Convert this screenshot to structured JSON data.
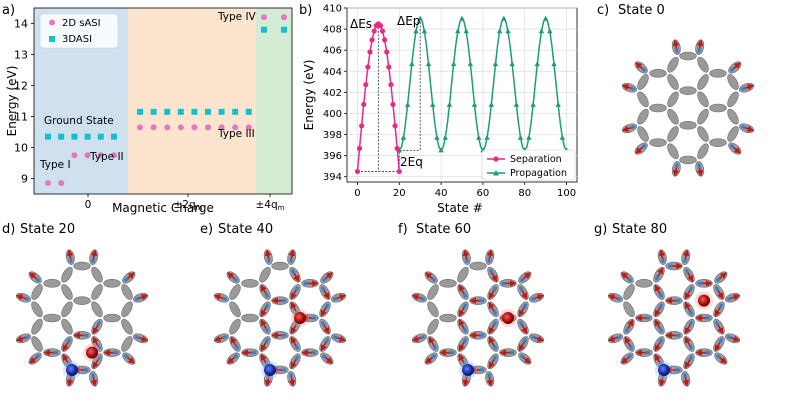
{
  "panels": {
    "a": {
      "label": "a)"
    },
    "b": {
      "label": "b)"
    },
    "c": {
      "label": "c)",
      "state": "State 0"
    },
    "d": {
      "label": "d)",
      "state": "State 20"
    },
    "e": {
      "label": "e)",
      "state": "State 40"
    },
    "f": {
      "label": "f)",
      "state": "State 60"
    },
    "g": {
      "label": "g)",
      "state": "State 80"
    }
  },
  "colors": {
    "sasi": "#e377c2",
    "dasi": "#17becf",
    "separation": "#e7298a",
    "propagation": "#1b9e77",
    "region_blue": "#cfe0ee",
    "region_orange": "#fde4cf",
    "region_green": "#d5ecd4",
    "island": "#9a9a9a",
    "arrow": "#c01818",
    "blue_end": "#3a7bd5",
    "charge_red": "#b01010",
    "charge_blue": "#1030a0"
  },
  "chart_data": [
    {
      "type": "scatter",
      "ylabel": "Energy (eV)",
      "xlabel": "Magnetic Charge",
      "ylim": [
        8.5,
        14.5
      ],
      "yticks": [
        9,
        10,
        11,
        12,
        13,
        14
      ],
      "xticks": [
        "0",
        "±2q",
        "±4q"
      ],
      "xtick_sub": "m",
      "legend": [
        "2D sASI",
        "3DASI"
      ],
      "legend_position": "top-left",
      "series": [
        {
          "name": "2D sASI",
          "points": [
            [
              0,
              8.85
            ],
            [
              1,
              8.85
            ],
            [
              2,
              9.75
            ],
            [
              3,
              9.75
            ],
            [
              4,
              9.75
            ],
            [
              5,
              9.75
            ],
            [
              6,
              10.65
            ],
            [
              7,
              10.65
            ],
            [
              8,
              10.65
            ],
            [
              9,
              10.65
            ],
            [
              10,
              10.65
            ],
            [
              11,
              10.65
            ],
            [
              12,
              10.65
            ],
            [
              13,
              10.65
            ],
            [
              14,
              10.65
            ],
            [
              15,
              14.2
            ],
            [
              16,
              14.2
            ]
          ]
        },
        {
          "name": "3DASI",
          "points": [
            [
              0,
              10.35
            ],
            [
              1,
              10.35
            ],
            [
              2,
              10.35
            ],
            [
              3,
              10.35
            ],
            [
              4,
              10.35
            ],
            [
              5,
              10.35
            ],
            [
              6,
              11.15
            ],
            [
              7,
              11.15
            ],
            [
              8,
              11.15
            ],
            [
              9,
              11.15
            ],
            [
              10,
              11.15
            ],
            [
              11,
              11.15
            ],
            [
              12,
              11.15
            ],
            [
              13,
              11.15
            ],
            [
              14,
              11.15
            ],
            [
              15,
              13.8
            ],
            [
              16,
              13.8
            ]
          ]
        }
      ],
      "annotations": [
        "Type I",
        "Type II",
        "Type III",
        "Type IV",
        "Ground State"
      ]
    },
    {
      "type": "line",
      "xlabel": "State #",
      "ylabel": "Energy (eV)",
      "xlim": [
        -5,
        105
      ],
      "ylim": [
        393.5,
        410
      ],
      "xticks": [
        0,
        20,
        40,
        60,
        80,
        100
      ],
      "yticks": [
        394,
        396,
        398,
        400,
        402,
        404,
        406,
        408,
        410
      ],
      "legend": [
        "Separation",
        "Propagation"
      ],
      "legend_position": "bottom-right",
      "baseline": 394.5,
      "separation_peak": 408.5,
      "propagation_min": 396.5,
      "propagation_peak": 409.0,
      "annotations": [
        "ΔEs",
        "ΔEp",
        "2Eq"
      ]
    }
  ]
}
